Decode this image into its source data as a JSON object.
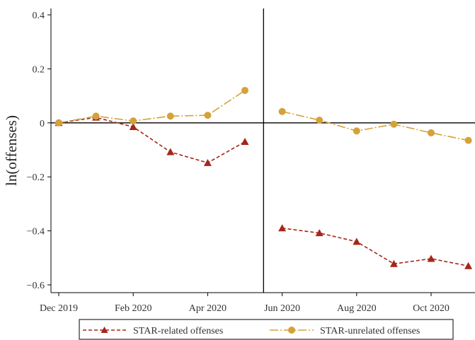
{
  "chart_data": {
    "type": "line",
    "title": "",
    "xlabel": "",
    "ylabel": "ln(offenses)",
    "x": [
      "Dec 2019",
      "Jan 2020",
      "Feb 2020",
      "Mar 2020",
      "Apr 2020",
      "May 2020",
      "Jun 2020",
      "Jul 2020",
      "Aug 2020",
      "Sep 2020",
      "Oct 2020",
      "Nov 2020"
    ],
    "x_tick_labels": [
      "Dec 2019",
      "Feb 2020",
      "Apr 2020",
      "Jun 2020",
      "Aug 2020",
      "Oct 2020"
    ],
    "ylim": [
      -0.62,
      0.42
    ],
    "y_ticks": [
      0.4,
      0.2,
      0,
      -0.2,
      -0.4,
      -0.6
    ],
    "y_tick_labels": [
      "0.4",
      "0.2",
      "0",
      "−0.2",
      "−0.4",
      "−0.6"
    ],
    "reference_lines": {
      "horizontal_y": 0,
      "vertical_between": [
        "May 2020",
        "Jun 2020"
      ]
    },
    "grid": false,
    "legend_position": "bottom",
    "series": [
      {
        "name": "STAR-related offenses",
        "color": "#a5261a",
        "marker": "triangle",
        "line_style": "dashed",
        "values": [
          0.0,
          0.02,
          -0.015,
          -0.108,
          -0.148,
          -0.07,
          -0.39,
          -0.408,
          -0.44,
          -0.522,
          -0.503,
          -0.53
        ]
      },
      {
        "name": "STAR-unrelated offenses",
        "color": "#d4a238",
        "marker": "circle",
        "line_style": "dashdot",
        "values": [
          0.0,
          0.025,
          0.007,
          0.025,
          0.028,
          0.12,
          0.042,
          0.01,
          -0.03,
          -0.005,
          -0.037,
          -0.065
        ]
      }
    ]
  }
}
